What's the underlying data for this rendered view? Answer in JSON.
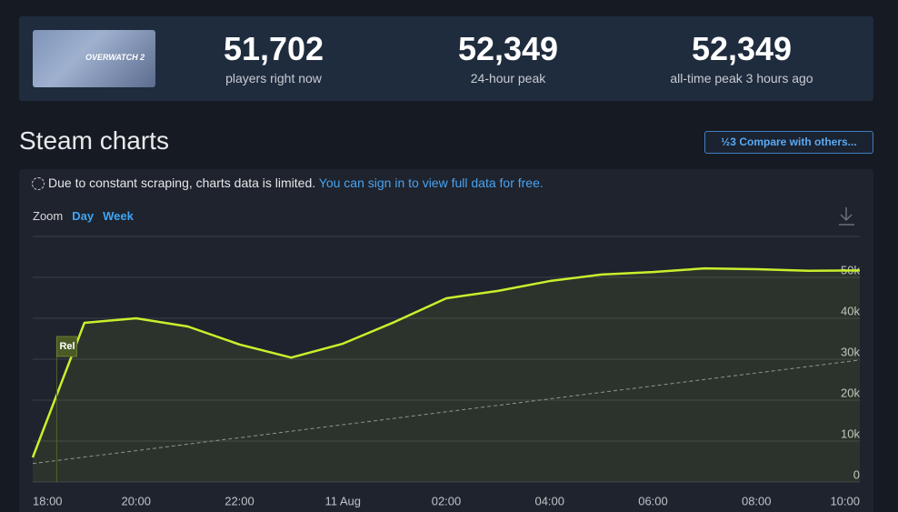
{
  "header": {
    "game_logo": "OVERWATCH 2",
    "stats": [
      {
        "value": "51,702",
        "label": "players right now"
      },
      {
        "value": "52,349",
        "label": "24-hour peak"
      },
      {
        "value": "52,349",
        "label": "all-time peak 3 hours ago"
      }
    ]
  },
  "section_title": "Steam charts",
  "compare_button": {
    "icon": "½3",
    "label": "Compare with others..."
  },
  "notice": {
    "text": "Due to constant scraping, charts data is limited.",
    "link": "You can sign in to view full data for free."
  },
  "zoom": {
    "label": "Zoom",
    "options": [
      "Day",
      "Week"
    ]
  },
  "chart_data": {
    "type": "line",
    "categories": [
      "18:00",
      null,
      "20:00",
      null,
      "22:00",
      null,
      "11 Aug",
      null,
      "02:00",
      null,
      "04:00",
      null,
      "06:00",
      null,
      "08:00",
      null,
      "10:00"
    ],
    "values": [
      6000,
      38900,
      40000,
      38000,
      33600,
      30400,
      33800,
      39100,
      44900,
      46700,
      49100,
      50700,
      51300,
      52200,
      52000,
      51600,
      51700
    ],
    "color": "#c9ef2c",
    "trend_values": [
      4500,
      29800
    ],
    "trend_color": "#8a8f96",
    "annotation": "Rel",
    "ylim": [
      0,
      60000
    ],
    "yticks": [
      0,
      {
        "value": 10000,
        "label": "10k"
      },
      {
        "value": 20000,
        "label": "20k"
      },
      {
        "value": 30000,
        "label": "30k"
      },
      {
        "value": 40000,
        "label": "40k"
      },
      {
        "value": 50000,
        "label": "50k"
      }
    ],
    "grid": true
  }
}
